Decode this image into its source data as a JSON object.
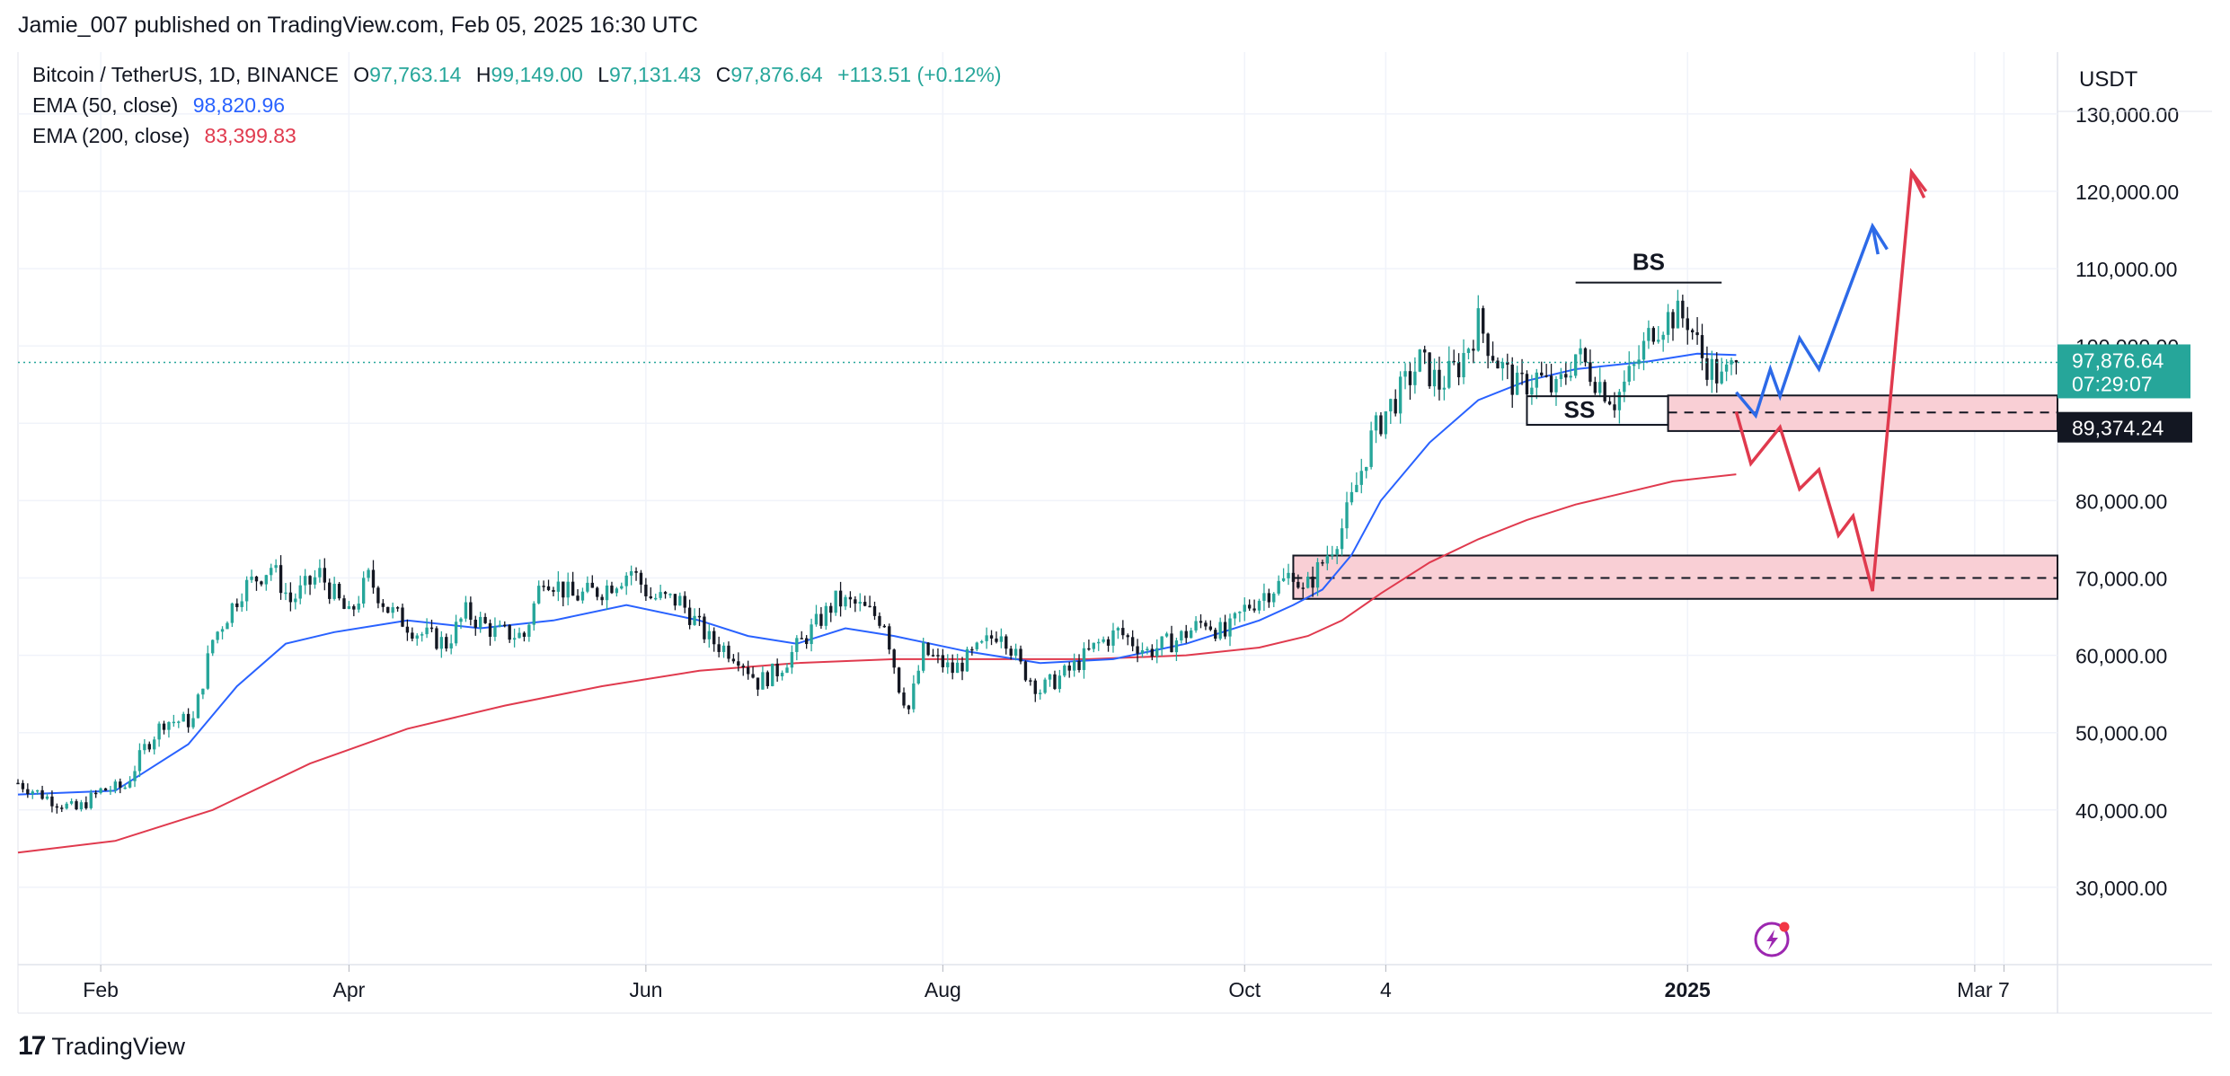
{
  "header": {
    "published_text": "Jamie_007 published on TradingView.com, Feb 05, 2025 16:30 UTC"
  },
  "legend": {
    "symbol": "Bitcoin / TetherUS, 1D, BINANCE",
    "open_label": "O",
    "open": "97,763.14",
    "high_label": "H",
    "high": "99,149.00",
    "low_label": "L",
    "low": "97,131.43",
    "close_label": "C",
    "close": "97,876.64",
    "change": "+113.51 (+0.12%)",
    "ema50_label": "EMA (50, close)",
    "ema50_value": "98,820.96",
    "ema200_label": "EMA (200, close)",
    "ema200_value": "83,399.83"
  },
  "currency": "USDT",
  "price_tag": {
    "price": "97,876.64",
    "countdown": "07:29:07"
  },
  "level_tag": {
    "price": "89,374.24"
  },
  "annotations": {
    "buy_side": "BS",
    "sell_side": "SS"
  },
  "footer": {
    "brand": "TradingView",
    "brand_mark": "17"
  },
  "colors": {
    "up": "#26a69a",
    "down": "#131722",
    "ema50": "#2962ff",
    "ema200": "#e03a4e",
    "zone_fill": "#f9cfd5",
    "projection_blue": "#2d6ae8",
    "projection_red": "#e03a4e"
  },
  "chart_data": {
    "type": "candlestick",
    "title": "Bitcoin / TetherUS, 1D, BINANCE",
    "y_axis": {
      "range": [
        20000,
        138000
      ],
      "ticks": [
        30000,
        40000,
        50000,
        60000,
        70000,
        80000,
        90000,
        100000,
        110000,
        120000,
        130000
      ],
      "tick_labels": [
        "30,000.00",
        "40,000.00",
        "50,000.00",
        "60,000.00",
        "70,000.00",
        "80,000.00",
        "90,000.00",
        "100,000.00",
        "110,000.00",
        "120,000.00",
        "130,000.00"
      ]
    },
    "x_axis": {
      "range_days": [
        0,
        419
      ],
      "ticks": [
        {
          "label": "Feb",
          "day": 17,
          "bold": false
        },
        {
          "label": "Apr",
          "day": 68,
          "bold": false
        },
        {
          "label": "Jun",
          "day": 129,
          "bold": false
        },
        {
          "label": "Aug",
          "day": 190,
          "bold": false
        },
        {
          "label": "Oct",
          "day": 252,
          "bold": false
        },
        {
          "label": "4",
          "day": 281,
          "bold": false
        },
        {
          "label": "2025",
          "day": 343,
          "bold": true
        },
        {
          "label": "Mar",
          "day": 402,
          "bold": false
        },
        {
          "label": "7",
          "day": 408,
          "bold": false
        }
      ]
    },
    "close_anchors": [
      [
        0,
        43500
      ],
      [
        8,
        41000
      ],
      [
        12,
        40000
      ],
      [
        17,
        42500
      ],
      [
        22,
        43000
      ],
      [
        26,
        48000
      ],
      [
        30,
        51500
      ],
      [
        36,
        51500
      ],
      [
        40,
        62000
      ],
      [
        46,
        68500
      ],
      [
        52,
        71500
      ],
      [
        56,
        67000
      ],
      [
        62,
        70500
      ],
      [
        68,
        65000
      ],
      [
        72,
        70000
      ],
      [
        76,
        66000
      ],
      [
        82,
        63000
      ],
      [
        88,
        61500
      ],
      [
        92,
        65500
      ],
      [
        98,
        63000
      ],
      [
        104,
        62500
      ],
      [
        108,
        70500
      ],
      [
        114,
        67500
      ],
      [
        120,
        68500
      ],
      [
        126,
        71000
      ],
      [
        130,
        67500
      ],
      [
        136,
        67000
      ],
      [
        142,
        62000
      ],
      [
        148,
        60000
      ],
      [
        152,
        56500
      ],
      [
        156,
        58000
      ],
      [
        162,
        62500
      ],
      [
        168,
        67000
      ],
      [
        172,
        66500
      ],
      [
        178,
        64500
      ],
      [
        181,
        56000
      ],
      [
        183,
        53000
      ],
      [
        186,
        60500
      ],
      [
        192,
        58000
      ],
      [
        198,
        61000
      ],
      [
        202,
        63500
      ],
      [
        206,
        58500
      ],
      [
        210,
        55500
      ],
      [
        216,
        58000
      ],
      [
        222,
        61500
      ],
      [
        226,
        63000
      ],
      [
        232,
        60500
      ],
      [
        238,
        62000
      ],
      [
        244,
        64500
      ],
      [
        248,
        62500
      ],
      [
        252,
        66000
      ],
      [
        256,
        68000
      ],
      [
        260,
        69500
      ],
      [
        262,
        71000
      ],
      [
        264,
        68000
      ],
      [
        268,
        72000
      ],
      [
        272,
        76500
      ],
      [
        274,
        80000
      ],
      [
        278,
        88000
      ],
      [
        281,
        91500
      ],
      [
        284,
        94000
      ],
      [
        288,
        98000
      ],
      [
        292,
        95000
      ],
      [
        296,
        97500
      ],
      [
        300,
        103000
      ],
      [
        304,
        98000
      ],
      [
        308,
        94500
      ],
      [
        312,
        96000
      ],
      [
        316,
        94000
      ],
      [
        320,
        99000
      ],
      [
        324,
        96000
      ],
      [
        328,
        93000
      ],
      [
        332,
        97000
      ],
      [
        336,
        102500
      ],
      [
        340,
        104000
      ],
      [
        343,
        103500
      ],
      [
        346,
        98500
      ],
      [
        350,
        95500
      ],
      [
        353,
        97876.64
      ]
    ],
    "ema_50": [
      [
        0,
        42000
      ],
      [
        20,
        42500
      ],
      [
        35,
        48500
      ],
      [
        45,
        56000
      ],
      [
        55,
        61500
      ],
      [
        65,
        63000
      ],
      [
        80,
        64500
      ],
      [
        95,
        63500
      ],
      [
        110,
        64500
      ],
      [
        125,
        66500
      ],
      [
        140,
        64500
      ],
      [
        150,
        62500
      ],
      [
        160,
        61500
      ],
      [
        170,
        63500
      ],
      [
        180,
        62500
      ],
      [
        195,
        60500
      ],
      [
        210,
        59000
      ],
      [
        225,
        59500
      ],
      [
        240,
        61500
      ],
      [
        255,
        64500
      ],
      [
        262,
        66500
      ],
      [
        268,
        68500
      ],
      [
        274,
        73000
      ],
      [
        280,
        80000
      ],
      [
        290,
        87500
      ],
      [
        300,
        93000
      ],
      [
        310,
        95500
      ],
      [
        320,
        97000
      ],
      [
        335,
        98000
      ],
      [
        345,
        99000
      ],
      [
        353,
        98820.96
      ]
    ],
    "ema_200": [
      [
        0,
        34500
      ],
      [
        20,
        36000
      ],
      [
        40,
        40000
      ],
      [
        60,
        46000
      ],
      [
        80,
        50500
      ],
      [
        100,
        53500
      ],
      [
        120,
        56000
      ],
      [
        140,
        58000
      ],
      [
        160,
        59000
      ],
      [
        180,
        59500
      ],
      [
        200,
        59500
      ],
      [
        220,
        59500
      ],
      [
        240,
        60000
      ],
      [
        255,
        61000
      ],
      [
        265,
        62500
      ],
      [
        272,
        64500
      ],
      [
        280,
        68000
      ],
      [
        290,
        72000
      ],
      [
        300,
        75000
      ],
      [
        310,
        77500
      ],
      [
        320,
        79500
      ],
      [
        330,
        81000
      ],
      [
        340,
        82500
      ],
      [
        353,
        83399.83
      ]
    ],
    "series": [
      {
        "name": "EMA (50, close)",
        "last": 98820.96
      },
      {
        "name": "EMA (200, close)",
        "last": 83399.83
      }
    ],
    "last_price": 97876.64,
    "zones": [
      {
        "day_from": 339,
        "day_to": 419,
        "low": 89000,
        "high": 93600,
        "mid": 91400
      },
      {
        "day_from": 262,
        "day_to": 419,
        "low": 67300,
        "high": 72900,
        "mid": 70000
      }
    ],
    "ss_box": {
      "day_from": 310,
      "day_to": 339,
      "top": 93500,
      "bottom": 89800
    },
    "bs_line": {
      "day_from": 320,
      "day_to": 350,
      "price": 108200
    },
    "projection_blue": [
      [
        353,
        94000
      ],
      [
        357,
        91000
      ],
      [
        360,
        97000
      ],
      [
        362,
        93500
      ],
      [
        366,
        101000
      ],
      [
        370,
        97000
      ],
      [
        381,
        115500
      ],
      [
        384,
        112500
      ]
    ],
    "projection_red": [
      [
        353,
        91500
      ],
      [
        356,
        84800
      ],
      [
        362,
        89500
      ],
      [
        366,
        81500
      ],
      [
        370,
        84000
      ],
      [
        374,
        75500
      ],
      [
        377,
        78000
      ],
      [
        381,
        68300
      ],
      [
        389,
        122500
      ],
      [
        392,
        120000
      ]
    ]
  }
}
